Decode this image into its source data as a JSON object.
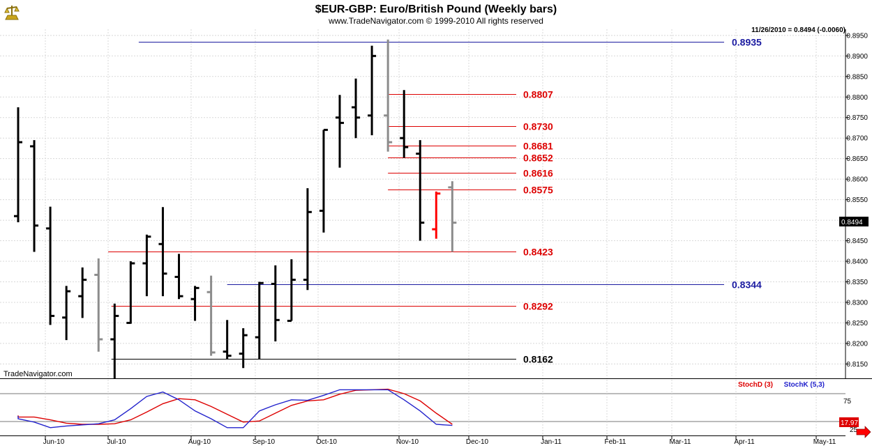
{
  "header": {
    "title": "$EUR-GBP:  Euro/British Pound  (Weekly bars)",
    "subtitle": "www.TradeNavigator.com © 1999-2010 All rights reserved",
    "last_quote": "11/26/2010 = 0.8494 (-0.0060)",
    "watermark": "TradeNavigator.com"
  },
  "colors": {
    "up_bar": "#000000",
    "ghost_bar": "#8c8c8c",
    "highlight_bar": "#ff0000",
    "support_resistance": "#dd0000",
    "major_level": "#1a1aa0",
    "stoch_d": "#dd0000",
    "stoch_k": "#2222cc",
    "grid": "#d8d8d8"
  },
  "chart_data": [
    {
      "type": "ohlc",
      "title": "$EUR-GBP:  Euro/British Pound  (Weekly bars)",
      "ylim": [
        0.8115,
        0.8965
      ],
      "y_ticks": [
        "0.8150",
        "0.8200",
        "0.8250",
        "0.8300",
        "0.8350",
        "0.8400",
        "0.8450",
        "0.8500",
        "0.8550",
        "0.8600",
        "0.8650",
        "0.8700",
        "0.8750",
        "0.8800",
        "0.8850",
        "0.8900",
        "0.8950"
      ],
      "x_ticks": [
        "Jun-10",
        "Jul-10",
        "Aug-10",
        "Sep-10",
        "Oct-10",
        "Nov-10",
        "Dec-10",
        "Jan-11",
        "Feb-11",
        "Mar-11",
        "Apr-11",
        "May-11"
      ],
      "current_value_label": "0.8494",
      "bars": [
        {
          "w": 1,
          "o": 0.851,
          "h": 0.8775,
          "l": 0.8495,
          "c": 0.869,
          "kind": "up"
        },
        {
          "w": 2,
          "o": 0.868,
          "h": 0.8695,
          "l": 0.8423,
          "c": 0.8487,
          "kind": "up"
        },
        {
          "w": 3,
          "o": 0.848,
          "h": 0.8533,
          "l": 0.8245,
          "c": 0.8267,
          "kind": "up"
        },
        {
          "w": 4,
          "o": 0.8263,
          "h": 0.834,
          "l": 0.8208,
          "c": 0.8327,
          "kind": "up"
        },
        {
          "w": 5,
          "o": 0.8315,
          "h": 0.8385,
          "l": 0.8262,
          "c": 0.8355,
          "kind": "up"
        },
        {
          "w": 6,
          "o": 0.8367,
          "h": 0.8407,
          "l": 0.818,
          "c": 0.821,
          "kind": "ghost"
        },
        {
          "w": 7,
          "o": 0.821,
          "h": 0.8297,
          "l": 0.8115,
          "c": 0.8267,
          "kind": "up"
        },
        {
          "w": 8,
          "o": 0.825,
          "h": 0.84,
          "l": 0.8248,
          "c": 0.8395,
          "kind": "up"
        },
        {
          "w": 9,
          "o": 0.8395,
          "h": 0.8465,
          "l": 0.8315,
          "c": 0.846,
          "kind": "up"
        },
        {
          "w": 10,
          "o": 0.8442,
          "h": 0.8532,
          "l": 0.8315,
          "c": 0.837,
          "kind": "up"
        },
        {
          "w": 11,
          "o": 0.8362,
          "h": 0.8418,
          "l": 0.8308,
          "c": 0.8315,
          "kind": "up"
        },
        {
          "w": 12,
          "o": 0.8308,
          "h": 0.834,
          "l": 0.8255,
          "c": 0.8335,
          "kind": "up"
        },
        {
          "w": 13,
          "o": 0.8325,
          "h": 0.8365,
          "l": 0.817,
          "c": 0.8178,
          "kind": "ghost"
        },
        {
          "w": 14,
          "o": 0.818,
          "h": 0.8257,
          "l": 0.8162,
          "c": 0.817,
          "kind": "up"
        },
        {
          "w": 15,
          "o": 0.8175,
          "h": 0.8237,
          "l": 0.814,
          "c": 0.822,
          "kind": "up"
        },
        {
          "w": 16,
          "o": 0.8215,
          "h": 0.835,
          "l": 0.8162,
          "c": 0.8347,
          "kind": "up"
        },
        {
          "w": 17,
          "o": 0.8345,
          "h": 0.839,
          "l": 0.8205,
          "c": 0.8257,
          "kind": "up"
        },
        {
          "w": 18,
          "o": 0.8255,
          "h": 0.8405,
          "l": 0.8255,
          "c": 0.8355,
          "kind": "up"
        },
        {
          "w": 19,
          "o": 0.8355,
          "h": 0.8578,
          "l": 0.833,
          "c": 0.852,
          "kind": "up"
        },
        {
          "w": 20,
          "o": 0.8523,
          "h": 0.872,
          "l": 0.847,
          "c": 0.872,
          "kind": "up"
        },
        {
          "w": 21,
          "o": 0.875,
          "h": 0.8805,
          "l": 0.8628,
          "c": 0.8737,
          "kind": "up"
        },
        {
          "w": 22,
          "o": 0.8775,
          "h": 0.8845,
          "l": 0.87,
          "c": 0.875,
          "kind": "up"
        },
        {
          "w": 23,
          "o": 0.8755,
          "h": 0.8925,
          "l": 0.8707,
          "c": 0.89,
          "kind": "up"
        },
        {
          "w": 24,
          "o": 0.8755,
          "h": 0.894,
          "l": 0.8667,
          "c": 0.869,
          "kind": "ghost"
        },
        {
          "w": 25,
          "o": 0.87,
          "h": 0.8817,
          "l": 0.8652,
          "c": 0.8678,
          "kind": "up"
        },
        {
          "w": 26,
          "o": 0.8662,
          "h": 0.8695,
          "l": 0.845,
          "c": 0.8494,
          "kind": "up"
        },
        {
          "w": 27,
          "o": 0.8478,
          "h": 0.857,
          "l": 0.8455,
          "c": 0.8565,
          "kind": "highlight"
        },
        {
          "w": 28,
          "o": 0.858,
          "h": 0.8595,
          "l": 0.8423,
          "c": 0.8494,
          "kind": "ghost"
        }
      ],
      "levels": [
        {
          "value": 0.8935,
          "label": "0.8935",
          "color": "major",
          "from_week": 8.5
        },
        {
          "value": 0.8807,
          "label": "0.8807",
          "color": "red",
          "from_week": 24
        },
        {
          "value": 0.873,
          "label": "0.8730",
          "color": "red",
          "from_week": 24
        },
        {
          "value": 0.8681,
          "label": "0.8681",
          "color": "red",
          "from_week": 24
        },
        {
          "value": 0.8652,
          "label": "0.8652",
          "color": "red",
          "from_week": 24
        },
        {
          "value": 0.8616,
          "label": "0.8616",
          "color": "red",
          "from_week": 24
        },
        {
          "value": 0.8575,
          "label": "0.8575",
          "color": "red",
          "from_week": 24
        },
        {
          "value": 0.8423,
          "label": "0.8423",
          "color": "red",
          "from_week": 6.6
        },
        {
          "value": 0.8344,
          "label": "0.8344",
          "color": "major",
          "from_week": 14
        },
        {
          "value": 0.8292,
          "label": "0.8292",
          "color": "red",
          "from_week": 6.8
        },
        {
          "value": 0.8162,
          "label": "0.8162",
          "color": "black",
          "from_week": 6.8
        }
      ]
    },
    {
      "type": "line",
      "legend": [
        "StochD (3)",
        "StochK (5,3)"
      ],
      "ylim": [
        0,
        100
      ],
      "y_ticks": [
        "75",
        "25"
      ],
      "current_value_label": "17.97",
      "series": [
        {
          "name": "StochD (3)",
          "color": "stoch_d",
          "x": [
            0,
            1,
            2,
            3,
            4,
            5,
            6,
            7,
            8,
            9,
            10,
            11,
            12,
            13,
            14,
            15,
            16,
            17,
            18,
            19,
            20,
            21,
            22,
            23,
            24,
            25,
            26,
            27,
            28
          ],
          "values": [
            36,
            33,
            33,
            28,
            22,
            20,
            20,
            21,
            28,
            42,
            57,
            66,
            64,
            52,
            38,
            24,
            26,
            40,
            54,
            62,
            64,
            74,
            81,
            82,
            83,
            75,
            62,
            40,
            20
          ]
        },
        {
          "name": "StochK (5,3)",
          "color": "stoch_k",
          "x": [
            0,
            1,
            2,
            3,
            4,
            5,
            6,
            7,
            8,
            9,
            10,
            11,
            12,
            13,
            14,
            15,
            16,
            17,
            18,
            19,
            20,
            21,
            22,
            23,
            24,
            25,
            26,
            27,
            28
          ],
          "values": [
            35,
            30,
            24,
            14,
            17,
            19,
            21,
            28,
            48,
            70,
            78,
            64,
            44,
            30,
            14,
            14,
            44,
            55,
            64,
            63,
            72,
            82,
            82,
            82,
            82,
            64,
            44,
            20,
            18
          ]
        }
      ]
    }
  ]
}
